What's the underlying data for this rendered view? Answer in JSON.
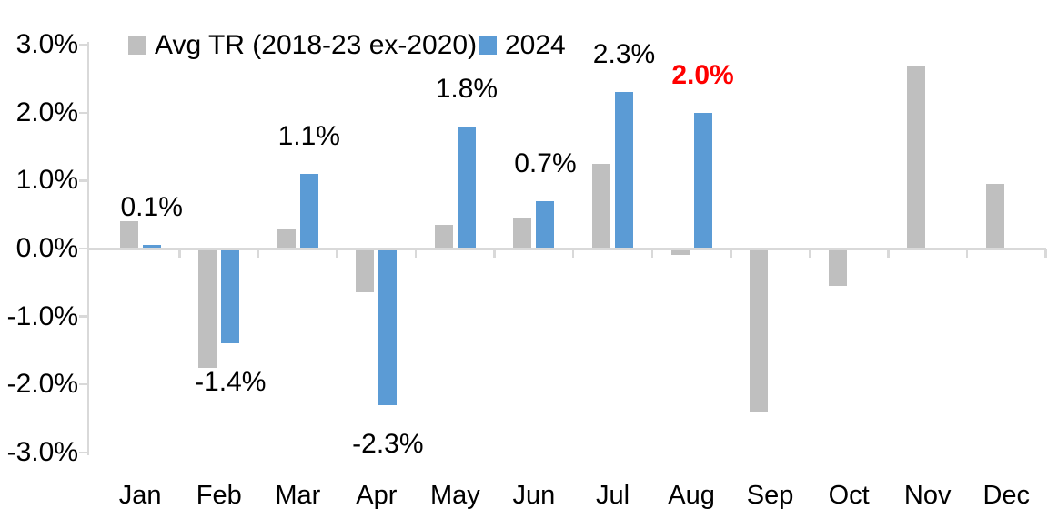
{
  "chart_data": {
    "type": "bar",
    "title": "",
    "categories": [
      "Jan",
      "Feb",
      "Mar",
      "Apr",
      "May",
      "Jun",
      "Jul",
      "Aug",
      "Sep",
      "Oct",
      "Nov",
      "Dec"
    ],
    "series": [
      {
        "name": "Avg TR (2018-23 ex-2020)",
        "color": "#BFBFBF",
        "values": [
          0.4,
          -1.75,
          0.3,
          -0.65,
          0.35,
          0.45,
          1.25,
          -0.1,
          -2.4,
          -0.55,
          2.7,
          0.95
        ]
      },
      {
        "name": "2024",
        "color": "#5B9BD5",
        "values": [
          0.05,
          -1.4,
          1.1,
          -2.3,
          1.8,
          0.7,
          2.3,
          2.0,
          null,
          null,
          null,
          null
        ],
        "data_labels": [
          "0.1%",
          "-1.4%",
          "1.1%",
          "-2.3%",
          "1.8%",
          "0.7%",
          "2.3%",
          "2.0%",
          "",
          "",
          "",
          ""
        ]
      }
    ],
    "label_highlight": {
      "category": "Aug",
      "index": 7,
      "text": "2.0%",
      "color": "#FF0000",
      "bold": true
    },
    "ylabel": "",
    "xlabel": "",
    "ylim": [
      -3.0,
      3.0
    ],
    "y_ticks": [
      {
        "value": 3.0,
        "label": "3.0%"
      },
      {
        "value": 2.0,
        "label": "2.0%"
      },
      {
        "value": 1.0,
        "label": "1.0%"
      },
      {
        "value": 0.0,
        "label": "0.0%"
      },
      {
        "value": -1.0,
        "label": "-1.0%"
      },
      {
        "value": -2.0,
        "label": "-2.0%"
      },
      {
        "value": -3.0,
        "label": "-3.0%"
      }
    ],
    "grid": false,
    "legend_position": "top",
    "axis_color": "#D9D9D9",
    "text_color": "#000000",
    "unit": "%"
  }
}
